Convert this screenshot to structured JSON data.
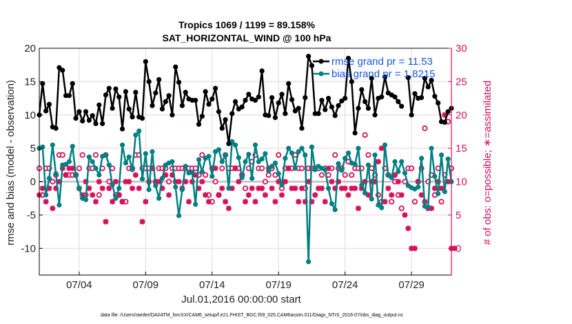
{
  "chart_data": {
    "type": "line",
    "title": "Tropics 1069 / 1199 = 89.158%",
    "subtitle": "SAT_HORIZONTAL_WIND @ 100 hPa",
    "xlabel": "Jul.01,2016 00:00:00 start",
    "ylabel": "rmse and bias (model - observation)",
    "ylabel_right": "# of obs: o=possible; ∗=assimilated",
    "footer": "data file: /Users/raeder/DAI/ATM_forcXX/CAM6_setup/f.e21.FHIST_BGC.f09_025.CAM6assim.011/Diags_NTrS_2016-07/obs_diag_output.nc",
    "xlim_days": [
      0,
      31
    ],
    "ylim": [
      -14,
      20
    ],
    "ylim_right": [
      -4,
      30
    ],
    "x_ticks": [
      {
        "day": 3,
        "label": "07/04"
      },
      {
        "day": 8,
        "label": "07/09"
      },
      {
        "day": 13,
        "label": "07/14"
      },
      {
        "day": 18,
        "label": "07/19"
      },
      {
        "day": 23,
        "label": "07/24"
      },
      {
        "day": 28,
        "label": "07/29"
      }
    ],
    "y_ticks": [
      20,
      15,
      10,
      5,
      0,
      -5,
      -10
    ],
    "y_ticks_right": [
      30,
      25,
      20,
      15,
      10,
      5,
      0
    ],
    "grid": true,
    "legend": {
      "position": "top-right",
      "entries": [
        {
          "label": "rmse grand pr = 11.53",
          "color": "#000000"
        },
        {
          "label": "bias grand pr = 1.8215",
          "color": "#008080"
        }
      ]
    },
    "colors": {
      "rmse": "#000000",
      "bias": "#008080",
      "obs": "#d6105a",
      "zero_line": "#bfbfbf",
      "grid": "#f2cfdc",
      "legend_text": "#1a56e8"
    },
    "x_step_days": 0.25,
    "x_start_day": 0.0,
    "series": [
      {
        "name": "rmse",
        "values": [
          10.0,
          14.7,
          10.6,
          11.6,
          8.2,
          8.0,
          17.1,
          16.7,
          12.9,
          12.9,
          14.7,
          9.5,
          10.5,
          9.1,
          10.5,
          9.2,
          9.9,
          8.7,
          11.5,
          8.7,
          13.0,
          14.0,
          11.0,
          13.9,
          12.7,
          7.9,
          13.5,
          10.9,
          9.7,
          13.4,
          9.7,
          9.5,
          18.0,
          15.0,
          11.4,
          13.3,
          15.3,
          10.9,
          12.0,
          12.9,
          10.0,
          17.2,
          14.9,
          11.4,
          13.4,
          12.4,
          12.2,
          12.2,
          8.6,
          9.8,
          13.5,
          11.6,
          12.4,
          14.0,
          10.5,
          8.0,
          9.3,
          5.7,
          10.2,
          12.0,
          10.9,
          11.2,
          12.2,
          13.1,
          12.4,
          12.2,
          12.7,
          16.6,
          10.0,
          9.9,
          12.6,
          9.6,
          11.8,
          13.1,
          10.2,
          14.7,
          12.3,
          10.6,
          11.0,
          8.0,
          12.6,
          18.8,
          17.4,
          10.2,
          10.2,
          12.2,
          10.8,
          12.5,
          11.2,
          9.9,
          11.4,
          12.1,
          12.5,
          18.5,
          15.0,
          7.3,
          11.0,
          13.8,
          12.0,
          11.0,
          15.5,
          10.0,
          12.5,
          12.7,
          15.7,
          13.3,
          13.0,
          12.7,
          12.0,
          11.3,
          null,
          15.6,
          10.0,
          13.2,
          12.5,
          12.6,
          15.5,
          14.2,
          15.2,
          12.8,
          11.8,
          9.0,
          8.9,
          10.5,
          11.0
        ]
      },
      {
        "name": "bias",
        "values": [
          5.0,
          5.2,
          -2.0,
          0.5,
          5.5,
          1.2,
          -3.5,
          2.5,
          2.6,
          3.0,
          5.3,
          1.0,
          -1.0,
          -2.5,
          -2.7,
          3.7,
          3.0,
          2.0,
          1.0,
          3.8,
          4.0,
          2.5,
          -0.5,
          -2.5,
          -1.0,
          5.5,
          2.8,
          3.7,
          1.8,
          7.0,
          7.6,
          0.4,
          4.2,
          -1.2,
          4.5,
          -0.6,
          -2.5,
          0.5,
          2.5,
          2.8,
          3.0,
          -0.8,
          -5.1,
          -1.2,
          2.3,
          1.3,
          1.4,
          -3.4,
          3.3,
          1.5,
          3.5,
          3.8,
          0.8,
          4.5,
          4.8,
          3.0,
          4.0,
          -1.0,
          6.0,
          5.5,
          3.6,
          0.6,
          3.0,
          4.1,
          0.5,
          5.5,
          3.0,
          3.4,
          4.2,
          1.6,
          2.3,
          2.8,
          1.2,
          -0.5,
          3.5,
          5.0,
          4.3,
          2.0,
          4.5,
          5.0,
          4.0,
          -12.0,
          5.2,
          1.8,
          2.3,
          2.0,
          1.8,
          -1.0,
          -3.3,
          -4.2,
          2.7,
          1.7,
          3.5,
          4.3,
          2.8,
          2.6,
          5.0,
          -0.5,
          -1.7,
          2.5,
          -2.6,
          4.0,
          -3.5,
          -3.9,
          5.5,
          1.0,
          0.6,
          3.0,
          1.5,
          3.0,
          1.3,
          -0.6,
          -0.9,
          -1.1,
          -0.8,
          3.5,
          -3.7,
          -3.8,
          5.0,
          0.8,
          -1.8,
          4.0,
          -1.5,
          3.4,
          0.0
        ]
      },
      {
        "name": "obs_possible",
        "axis": "right",
        "values": [
          12,
          8,
          12,
          12,
          10,
          11,
          14,
          14,
          11,
          11,
          11,
          11,
          12,
          14,
          8,
          12,
          12,
          14,
          8,
          12,
          14,
          10,
          12,
          8,
          8,
          7,
          7,
          12,
          12,
          14,
          14,
          12,
          12,
          12,
          12,
          10,
          12,
          12,
          12,
          10,
          12,
          12,
          12,
          12,
          12,
          12,
          12,
          12,
          11,
          14,
          11,
          8,
          7,
          10,
          8,
          12,
          14,
          12,
          12,
          12,
          12,
          11,
          9,
          12,
          13,
          14,
          12,
          12,
          10,
          11,
          12,
          11,
          14,
          9,
          12,
          12,
          12,
          14,
          12,
          12,
          9,
          12,
          12,
          12,
          12,
          11,
          12,
          11,
          12,
          14,
          12,
          12,
          11,
          13,
          11,
          12,
          12,
          12,
          17,
          14,
          12,
          11,
          8,
          7,
          12,
          11,
          7,
          10,
          8,
          6,
          10,
          12,
          12,
          7,
          10,
          12,
          18,
          10,
          11,
          8,
          12,
          7,
          11,
          19,
          12
        ]
      },
      {
        "name": "obs_assimilated",
        "axis": "right",
        "values": [
          8,
          9,
          7,
          9,
          6,
          9,
          10,
          12,
          11,
          12,
          12,
          11,
          9,
          8,
          10,
          9,
          8,
          7,
          10,
          9,
          4,
          9,
          7,
          10,
          8,
          7,
          10,
          10,
          9,
          11,
          9,
          4,
          7,
          10,
          12,
          10,
          10,
          9,
          11,
          8,
          11,
          10,
          10,
          9,
          10,
          7,
          10,
          11,
          9,
          10,
          8,
          7,
          12,
          12,
          8,
          9,
          7,
          6,
          9,
          12,
          10,
          11,
          7,
          8,
          9,
          7,
          9,
          9,
          8,
          12,
          9,
          7,
          10,
          8,
          10,
          12,
          9,
          9,
          7,
          9,
          7,
          10,
          7,
          8,
          9,
          9,
          7,
          12,
          10,
          9,
          10,
          9,
          9,
          8,
          9,
          9,
          6,
          9,
          10,
          8,
          10,
          10,
          13,
          15,
          7,
          9,
          8,
          11,
          10,
          8,
          5,
          3,
          0,
          0,
          10,
          8,
          7,
          6,
          6,
          9,
          10,
          9,
          20,
          10,
          0,
          0
        ]
      }
    ]
  }
}
